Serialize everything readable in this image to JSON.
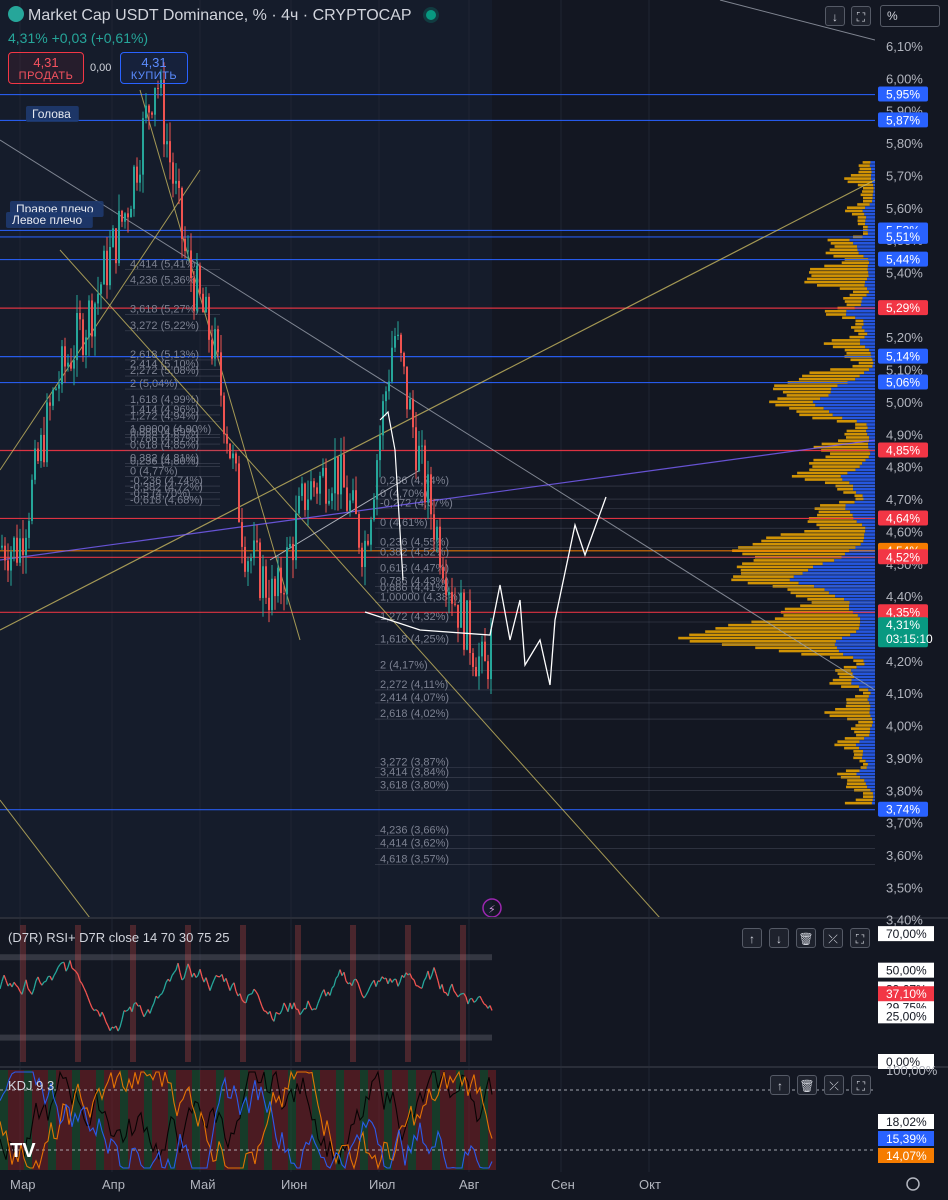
{
  "header": {
    "title": "Market Cap USDT Dominance, % · 4ч · CRYPTOCAP",
    "change": "4,31% +0,03 (+0,61%)"
  },
  "trade": {
    "sell_value": "4,31",
    "sell_label": "ПРОДАТЬ",
    "spread": "0,00",
    "buy_value": "4,31",
    "buy_label": "КУПИТЬ"
  },
  "toolbar": {
    "down_arrow": "↓",
    "fullscreen": "⛶",
    "scale_mode": "%"
  },
  "colors": {
    "background": "#131722",
    "up": "#26a69a",
    "down": "#ef5350",
    "blue_level": "#2962ff",
    "red_level": "#f23645",
    "volume_profile_orange": "#f2a900",
    "volume_profile_blue": "#2962ff",
    "trend_line": "#c8b860"
  },
  "chart_data": [
    {
      "type": "candlestick",
      "title": "Market Cap USDT Dominance, % · 4ч · CRYPTOCAP",
      "y_unit": "%",
      "ylim": [
        3.4,
        6.15
      ],
      "y_ticks": [
        "6,10%",
        "6,00%",
        "5,90%",
        "5,80%",
        "5,70%",
        "5,60%",
        "5,50%",
        "5,40%",
        "5,30%",
        "5,20%",
        "5,10%",
        "5,00%",
        "4,90%",
        "4,80%",
        "4,70%",
        "4,60%",
        "4,50%",
        "4,40%",
        "4,30%",
        "4,20%",
        "4,10%",
        "4,00%",
        "3,90%",
        "3,80%",
        "3,70%",
        "3,60%",
        "3,50%",
        "3,40%"
      ],
      "x_ticks": [
        "Мар",
        "Апр",
        "Май",
        "Июн",
        "Июл",
        "Авг",
        "Сен",
        "Окт"
      ],
      "last_price": {
        "value": "4,31%",
        "countdown": "03:15:10"
      },
      "series_close_approx": [
        {
          "x": "Мар",
          "y": 4.55
        },
        {
          "x": "Мар",
          "y": 5.05
        },
        {
          "x": "Мар",
          "y": 5.3
        },
        {
          "x": "Апр",
          "y": 5.6
        },
        {
          "x": "Апр",
          "y": 6.02
        },
        {
          "x": "Апр",
          "y": 5.45
        },
        {
          "x": "Май",
          "y": 5.15
        },
        {
          "x": "Май",
          "y": 4.55
        },
        {
          "x": "Май",
          "y": 4.38
        },
        {
          "x": "Июн",
          "y": 4.72
        },
        {
          "x": "Июн",
          "y": 4.8
        },
        {
          "x": "Июн",
          "y": 4.55
        },
        {
          "x": "Июл",
          "y": 5.22
        },
        {
          "x": "Июл",
          "y": 4.75
        },
        {
          "x": "Июл",
          "y": 4.4
        },
        {
          "x": "Авг",
          "y": 4.16
        },
        {
          "x": "Авг",
          "y": 4.58
        },
        {
          "x": "Авг",
          "y": 4.31
        }
      ],
      "price_labels": [
        {
          "text": "5,95%",
          "value": 5.95,
          "kind": "blue"
        },
        {
          "text": "5,87%",
          "value": 5.87,
          "kind": "blue"
        },
        {
          "text": "5,53%",
          "value": 5.53,
          "kind": "blue"
        },
        {
          "text": "5,51%",
          "value": 5.51,
          "kind": "blue"
        },
        {
          "text": "5,44%",
          "value": 5.44,
          "kind": "blue"
        },
        {
          "text": "5,29%",
          "value": 5.29,
          "kind": "red"
        },
        {
          "text": "5,14%",
          "value": 5.14,
          "kind": "blue"
        },
        {
          "text": "5,06%",
          "value": 5.06,
          "kind": "blue"
        },
        {
          "text": "4,85%",
          "value": 4.85,
          "kind": "red"
        },
        {
          "text": "4,64%",
          "value": 4.64,
          "kind": "red"
        },
        {
          "text": "4,54%",
          "value": 4.54,
          "kind": "orange"
        },
        {
          "text": "4,52%",
          "value": 4.52,
          "kind": "red"
        },
        {
          "text": "4,35%",
          "value": 4.35,
          "kind": "red"
        },
        {
          "text": "4,31%",
          "value": 4.31,
          "kind": "green"
        },
        {
          "text": "3,74%",
          "value": 3.74,
          "kind": "blue"
        }
      ],
      "annotations": [
        {
          "text": "Голова"
        },
        {
          "text": "Правое плечо"
        },
        {
          "text": "Левое плечо"
        }
      ],
      "fib_labels": [
        {
          "text": "4,414 (5,41%)",
          "value": 5.41
        },
        {
          "text": "4,236 (5,36%)",
          "value": 5.36
        },
        {
          "text": "3,618 (5,27%)",
          "value": 5.27
        },
        {
          "text": "3,272 (5,22%)",
          "value": 5.22
        },
        {
          "text": "2,618 (5,13%)",
          "value": 5.13
        },
        {
          "text": "2,414 (5,10%)",
          "value": 5.1
        },
        {
          "text": "2,272 (5,08%)",
          "value": 5.08
        },
        {
          "text": "2 (5,04%)",
          "value": 5.04
        },
        {
          "text": "1,618 (4,99%)",
          "value": 4.99
        },
        {
          "text": "1,414 (4,96%)",
          "value": 4.96
        },
        {
          "text": "1,272 (4,94%)",
          "value": 4.94
        },
        {
          "text": "1,00000 (4,90%)",
          "value": 4.9
        },
        {
          "text": "0,886 (4,89%)",
          "value": 4.89
        },
        {
          "text": "0,786 (4,87%)",
          "value": 4.87
        },
        {
          "text": "0,618 (4,85%)",
          "value": 4.85
        },
        {
          "text": "0,382 (4,81%)",
          "value": 4.81
        },
        {
          "text": "0,236 (4,80%)",
          "value": 4.8
        },
        {
          "text": "0 (4,77%)",
          "value": 4.77
        },
        {
          "text": "-0,236 (4,74%)",
          "value": 4.74
        },
        {
          "text": "-0,382 (4,72%)",
          "value": 4.72
        },
        {
          "text": "-0,5 (4,70%)",
          "value": 4.7
        },
        {
          "text": "-0,618 (4,68%)",
          "value": 4.68
        },
        {
          "text": "0,236 (4,74%)",
          "value": 4.74
        },
        {
          "text": "0 (4,70%)",
          "value": 4.7
        },
        {
          "text": "-0,272 (4,67%)",
          "value": 4.67
        },
        {
          "text": "0 (4,61%)",
          "value": 4.61
        },
        {
          "text": "0,236 (4,55%)",
          "value": 4.55
        },
        {
          "text": "0,382 (4,52%)",
          "value": 4.52
        },
        {
          "text": "0,618 (4,47%)",
          "value": 4.47
        },
        {
          "text": "0,786 (4,43%)",
          "value": 4.43
        },
        {
          "text": "0,886 (4,41%)",
          "value": 4.41
        },
        {
          "text": "1,00000 (4,38%)",
          "value": 4.38
        },
        {
          "text": "1,272 (4,32%)",
          "value": 4.32
        },
        {
          "text": "1,618 (4,25%)",
          "value": 4.25
        },
        {
          "text": "2 (4,17%)",
          "value": 4.17
        },
        {
          "text": "2,272 (4,11%)",
          "value": 4.11
        },
        {
          "text": "2,414 (4,07%)",
          "value": 4.07
        },
        {
          "text": "2,618 (4,02%)",
          "value": 4.02
        },
        {
          "text": "3,272 (3,87%)",
          "value": 3.87
        },
        {
          "text": "3,414 (3,84%)",
          "value": 3.84
        },
        {
          "text": "3,618 (3,80%)",
          "value": 3.8
        },
        {
          "text": "4,236 (3,66%)",
          "value": 3.66
        },
        {
          "text": "4,414 (3,62%)",
          "value": 3.62
        },
        {
          "text": "4,618 (3,57%)",
          "value": 3.57
        }
      ]
    },
    {
      "type": "line",
      "title": "(D7R) RSI+ D7R close 14 70 30 75 25",
      "y_unit": "%",
      "ylim": [
        0,
        75
      ],
      "y_ticks": [
        "70,00%",
        "50,00%",
        "39,67%",
        "30,00%",
        "29,75%",
        "25,00%",
        "0,00%"
      ],
      "levels": [
        {
          "text": "39,67%",
          "value": 39.67,
          "kind": "white"
        },
        {
          "text": "37,10%",
          "value": 37.1,
          "kind": "red"
        },
        {
          "text": "29,75%",
          "value": 29.75,
          "kind": "white"
        }
      ]
    },
    {
      "type": "line",
      "title": "KDJ 9 3",
      "y_unit": "%",
      "ylim": [
        0,
        100
      ],
      "y_ticks": [
        "100,00%"
      ],
      "levels": [
        {
          "text": "18,02%",
          "value": 18.02,
          "kind": "white"
        },
        {
          "text": "15,39%",
          "value": 15.39,
          "kind": "blue"
        },
        {
          "text": "14,07%",
          "value": 14.07,
          "kind": "orange"
        }
      ]
    }
  ]
}
